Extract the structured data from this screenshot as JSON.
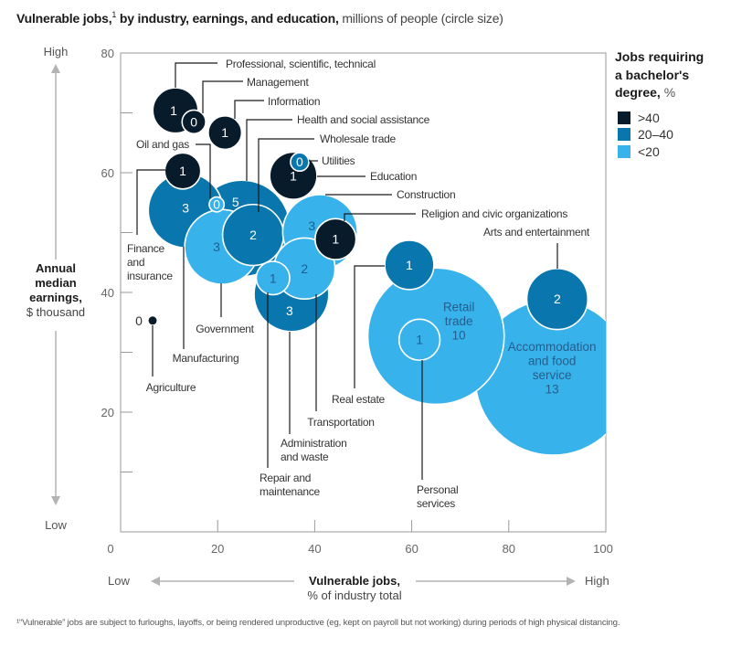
{
  "title": {
    "bold_1": "Vulnerable jobs,",
    "superscript": "1",
    "bold_2": " by industry, earnings, and education,",
    "regular": " millions of people (circle size)"
  },
  "legend": {
    "title_lines": [
      "Jobs requiring",
      "a bachelor's"
    ],
    "title_last_bold": "degree,",
    "title_last_regular": " %",
    "items": [
      {
        "label": ">40",
        "color": "#071b2b"
      },
      {
        "label": "20–40",
        "color": "#0a76ae"
      },
      {
        "label": "<20",
        "color": "#38b2ea"
      }
    ]
  },
  "y_axis_title": {
    "high": "High",
    "bold_lines": [
      "Annual",
      "median",
      "earnings,"
    ],
    "unit": "$ thousand",
    "low": "Low"
  },
  "x_axis_title": {
    "low": "Low",
    "bold": "Vulnerable jobs,",
    "unit": "% of industry total",
    "high": "High"
  },
  "footnote": "¹“Vulnerable” jobs are subject to furloughs, layoffs, or being rendered unproductive (eg, kept on payroll but not working) during periods of high physical distancing.",
  "chart_data": {
    "type": "scatter",
    "subtype": "bubble",
    "title": "Vulnerable jobs, by industry, earnings, and education, millions of people (circle size)",
    "xlabel": "Vulnerable jobs, % of industry total",
    "ylabel": "Annual median earnings, $ thousand",
    "x_axis": {
      "range": [
        0,
        100
      ],
      "tick_labels": [
        0,
        20,
        40,
        60,
        80,
        100
      ],
      "minor_ticks": [
        20,
        40,
        60,
        80
      ]
    },
    "y_axis": {
      "range": [
        0,
        80
      ],
      "tick_labels": [
        20,
        40,
        60,
        80
      ],
      "minor_ticks": [
        10,
        20,
        30,
        40,
        50,
        60,
        70
      ]
    },
    "grid": false,
    "legend_title": "Jobs requiring a bachelor's degree, %",
    "legend_position": "top-right",
    "size_legend": "millions of people (circle size)",
    "number_colors": {
      ">40": "#ffffff",
      "20–40": "#ffffff",
      "<20": "#1e5f91"
    },
    "points": [
      {
        "name": "Accommodation and food service",
        "label_lines": [
          "Accommodation",
          "and food",
          "service"
        ],
        "x": 89.1,
        "y": 25.8,
        "jobs_millions": 13,
        "size_est": 13,
        "bachelor_share": "<20"
      },
      {
        "name": "Retail trade",
        "label_lines": [
          "Retail",
          "trade"
        ],
        "x": 65.0,
        "y": 32.7,
        "jobs_millions": 10,
        "size_est": 10,
        "bachelor_share": "<20"
      },
      {
        "name": "Arts and entertainment",
        "label_lines": [
          "Arts and entertainment"
        ],
        "x": 90.0,
        "y": 38.9,
        "jobs_millions": 2,
        "size_est": 2,
        "bachelor_share": "20–40"
      },
      {
        "name": "Real estate",
        "label_lines": [
          "Real estate"
        ],
        "x": 59.5,
        "y": 44.6,
        "jobs_millions": 1,
        "size_est": 1.3,
        "bachelor_share": "20–40"
      },
      {
        "name": "Personal services",
        "label_lines": [
          "Personal",
          "services"
        ],
        "x": 61.6,
        "y": 32.1,
        "jobs_millions": 1,
        "size_est": 0.9,
        "bachelor_share": "<20"
      },
      {
        "name": "Health and social assistance",
        "label_lines": [
          "Health and social assistance"
        ],
        "x": 25.0,
        "y": 50.7,
        "jobs_millions": 5,
        "size_est": 5,
        "bachelor_share": "20–40"
      },
      {
        "name": "Manufacturing",
        "label_lines": [
          "Manufacturing"
        ],
        "x": 13.4,
        "y": 53.7,
        "jobs_millions": 3,
        "size_est": 3,
        "bachelor_share": "20–40"
      },
      {
        "name": "Government",
        "label_lines": [
          "Government"
        ],
        "x": 20.9,
        "y": 47.6,
        "jobs_millions": 3,
        "size_est": 3,
        "bachelor_share": "<20"
      },
      {
        "name": "Wholesale trade",
        "label_lines": [
          "Wholesale trade"
        ],
        "x": 27.3,
        "y": 49.6,
        "jobs_millions": 2,
        "size_est": 2,
        "bachelor_share": "20–40"
      },
      {
        "name": "Oil and gas",
        "label_lines": [
          "Oil and gas"
        ],
        "x": 19.8,
        "y": 54.7,
        "jobs_millions": 0,
        "size_est": 0.12,
        "bachelor_share": "<20"
      },
      {
        "name": "Finance and insurance",
        "label_lines": [
          "Finance",
          "and",
          "insurance"
        ],
        "x": 12.8,
        "y": 60.3,
        "jobs_millions": 1,
        "size_est": 0.7,
        "bachelor_share": ">40"
      },
      {
        "name": "Professional, scientific, technical",
        "label_lines": [
          "Professional, scientific, technical"
        ],
        "x": 11.3,
        "y": 70.4,
        "jobs_millions": 1,
        "size_est": 1.1,
        "bachelor_share": ">40"
      },
      {
        "name": "Management",
        "label_lines": [
          "Management"
        ],
        "x": 15.1,
        "y": 68.5,
        "jobs_millions": 0,
        "size_est": 0.3,
        "bachelor_share": ">40"
      },
      {
        "name": "Information",
        "label_lines": [
          "Information"
        ],
        "x": 21.5,
        "y": 66.7,
        "jobs_millions": 1,
        "size_est": 0.6,
        "bachelor_share": ">40"
      },
      {
        "name": "Construction",
        "label_lines": [
          "Construction"
        ],
        "x": 41.1,
        "y": 50.1,
        "jobs_millions": 3,
        "size_est": 3,
        "bachelor_share": "<20"
      },
      {
        "name": "Administration and waste",
        "label_lines": [
          "Administration",
          "and waste"
        ],
        "x": 35.2,
        "y": 39.7,
        "jobs_millions": 3,
        "size_est": 3,
        "bachelor_share": "20–40"
      },
      {
        "name": "Transportation",
        "label_lines": [
          "Transportation"
        ],
        "x": 37.9,
        "y": 44.0,
        "jobs_millions": 2,
        "size_est": 2,
        "bachelor_share": "<20"
      },
      {
        "name": "Religion and civic organizations",
        "label_lines": [
          "Religion and civic organizations"
        ],
        "x": 44.3,
        "y": 48.9,
        "jobs_millions": 1,
        "size_est": 0.9,
        "bachelor_share": ">40"
      },
      {
        "name": "Repair and maintenance",
        "label_lines": [
          "Repair and",
          "maintenance"
        ],
        "x": 31.4,
        "y": 42.4,
        "jobs_millions": 1,
        "size_est": 0.6,
        "bachelor_share": "<20"
      },
      {
        "name": "Education",
        "label_lines": [
          "Education"
        ],
        "x": 35.6,
        "y": 59.5,
        "jobs_millions": 1,
        "size_est": 1.2,
        "bachelor_share": ">40"
      },
      {
        "name": "Utilities",
        "label_lines": [
          "Utilities"
        ],
        "x": 36.9,
        "y": 61.8,
        "jobs_millions": 0,
        "size_est": 0.18,
        "bachelor_share": "20–40"
      },
      {
        "name": "Agriculture",
        "label_lines": [
          "Agriculture"
        ],
        "x": 6.6,
        "y": 35.3,
        "jobs_millions": 0,
        "size_est": 0.05,
        "bachelor_share": ">40"
      }
    ]
  }
}
